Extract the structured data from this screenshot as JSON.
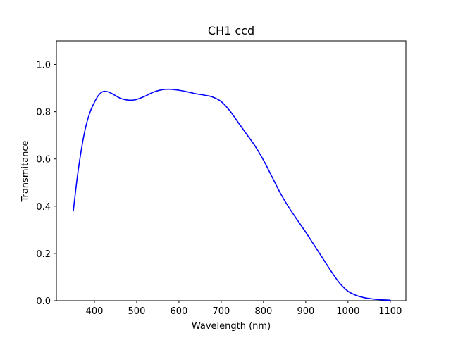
{
  "chart_data": {
    "type": "line",
    "title": "CH1 ccd",
    "xlabel": "Wavelength (nm)",
    "ylabel": "Transmitance",
    "xlim": [
      310,
      1137
    ],
    "ylim": [
      0.0,
      1.1
    ],
    "xticks": [
      400,
      500,
      600,
      700,
      800,
      900,
      1000,
      1100
    ],
    "yticks": [
      0.0,
      0.2,
      0.4,
      0.6,
      0.8,
      1.0
    ],
    "xtick_labels": [
      "400",
      "500",
      "600",
      "700",
      "800",
      "900",
      "1000",
      "1100"
    ],
    "ytick_labels": [
      "0.0",
      "0.2",
      "0.4",
      "0.6",
      "0.8",
      "1.0"
    ],
    "grid": false,
    "legend": false,
    "series": [
      {
        "color": "#0000ff",
        "x": [
          350,
          360,
          370,
          380,
          390,
          400,
          410,
          420,
          430,
          440,
          450,
          460,
          470,
          480,
          490,
          500,
          520,
          540,
          560,
          580,
          600,
          620,
          640,
          660,
          680,
          700,
          720,
          740,
          760,
          780,
          800,
          820,
          840,
          860,
          880,
          900,
          920,
          940,
          960,
          980,
          1000,
          1020,
          1040,
          1060,
          1080,
          1100
        ],
        "y": [
          0.38,
          0.53,
          0.65,
          0.74,
          0.8,
          0.84,
          0.87,
          0.885,
          0.885,
          0.878,
          0.868,
          0.858,
          0.852,
          0.849,
          0.849,
          0.852,
          0.866,
          0.883,
          0.893,
          0.895,
          0.891,
          0.884,
          0.876,
          0.87,
          0.862,
          0.843,
          0.805,
          0.755,
          0.705,
          0.655,
          0.595,
          0.525,
          0.455,
          0.395,
          0.342,
          0.29,
          0.235,
          0.18,
          0.125,
          0.075,
          0.04,
          0.022,
          0.012,
          0.007,
          0.004,
          0.002
        ]
      }
    ]
  }
}
